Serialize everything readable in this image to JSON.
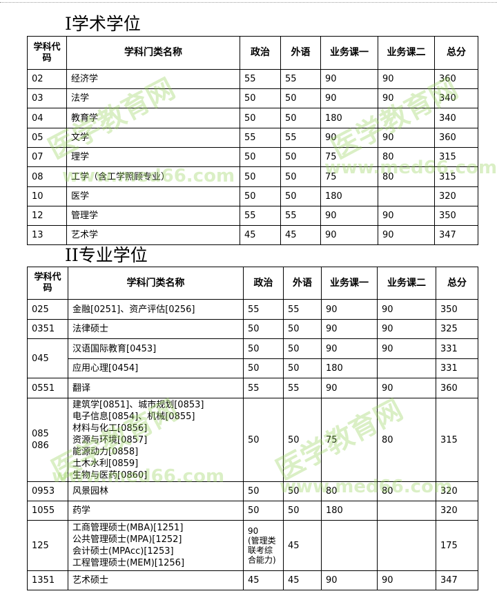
{
  "sections": [
    {
      "title": "I学术学位",
      "headers": [
        "学科代码",
        "学科门类名称",
        "政治",
        "外语",
        "业务课一",
        "业务课二",
        "总分"
      ],
      "rows": [
        [
          "02",
          "经济学",
          "55",
          "55",
          "90",
          "90",
          "360"
        ],
        [
          "03",
          "法学",
          "50",
          "50",
          "90",
          "90",
          "340"
        ],
        [
          "04",
          "教育学",
          "50",
          "50",
          "180",
          "",
          "340"
        ],
        [
          "05",
          "文学",
          "55",
          "55",
          "90",
          "90",
          "360"
        ],
        [
          "07",
          "理学",
          "50",
          "50",
          "75",
          "80",
          "315"
        ],
        [
          "08",
          "工学（含工学照顾专业）",
          "50",
          "50",
          "75",
          "80",
          "315"
        ],
        [
          "10",
          "医学",
          "50",
          "50",
          "180",
          "",
          "320"
        ],
        [
          "12",
          "管理学",
          "55",
          "55",
          "90",
          "90",
          "350"
        ],
        [
          "13",
          "艺术学",
          "45",
          "45",
          "90",
          "90",
          "347"
        ]
      ]
    },
    {
      "title": "II专业学位",
      "headers": [
        "学科代码",
        "学科门类名称",
        "政治",
        "外语",
        "业务课一",
        "业务课二",
        "总分"
      ],
      "rows": [
        [
          "025",
          "金融[0251]、资产评估[0256]",
          "55",
          "55",
          "90",
          "90",
          "350"
        ],
        [
          "0351",
          "法律硕士",
          "50",
          "50",
          "90",
          "90",
          "325"
        ],
        [
          "045",
          "汉语国际教育[0453]",
          "50",
          "50",
          "90",
          "90",
          "331"
        ],
        [
          "",
          "应用心理[0454]",
          "50",
          "50",
          "180",
          "",
          "331"
        ],
        [
          "0551",
          "翻译",
          "55",
          "55",
          "90",
          "90",
          "360"
        ],
        [
          "085\n086",
          "建筑学[0851]、城市规划[0853]\n电子信息[0854]、机械[0855]\n材料与化工[0856]\n资源与环境[0857]\n能源动力[0858]\n土木水利[0859]\n生物与医药[0860]",
          "50",
          "50",
          "75",
          "80",
          "315"
        ],
        [
          "0953",
          "风景园林",
          "50",
          "50",
          "80",
          "80",
          "320"
        ],
        [
          "1055",
          "药学",
          "50",
          "50",
          "180",
          "",
          "320"
        ],
        [
          "125",
          "工商管理硕士(MBA)[1251]\n公共管理硕士(MPA)[1252]\n会计硕士(MPAcc)[1253]\n工程管理硕士(MEM)[1256]",
          "90\n(管理类联考综合能力)",
          "45",
          "",
          "",
          "175"
        ],
        [
          "1351",
          "艺术硕士",
          "45",
          "45",
          "90",
          "90",
          "347"
        ]
      ]
    }
  ],
  "watermark": {
    "cn": "医学教育网",
    "url": "www.med66.com",
    "color": "#96d25a"
  }
}
